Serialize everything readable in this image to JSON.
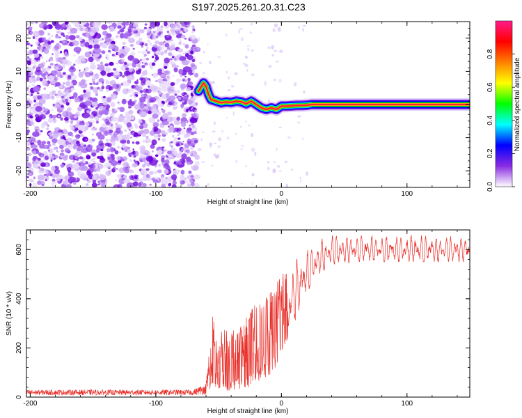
{
  "title": "S197.2025.261.20.31.C23",
  "chart_data": [
    {
      "type": "heatmap",
      "name": "spectrogram",
      "xlabel": "Height of straight line (km)",
      "ylabel": "Frequency (Hz)",
      "xlim": [
        -203,
        150
      ],
      "ylim": [
        -25,
        25
      ],
      "xticks": [
        -200,
        -100,
        0,
        100
      ],
      "yticks": [
        -20,
        -10,
        0,
        10,
        20
      ],
      "noise_region_x": [
        -203,
        -67
      ],
      "signal_trace": {
        "x": [
          -66,
          -62,
          -60,
          -58,
          -56,
          -52,
          -48,
          -44,
          -40,
          -36,
          -32,
          -28,
          -24,
          -20,
          -16,
          -12,
          -8,
          -4,
          0,
          4,
          8,
          12,
          16,
          20,
          24,
          40,
          60,
          80,
          100,
          120,
          150
        ],
        "y": [
          4,
          6.5,
          5.5,
          3,
          1.5,
          1,
          0.5,
          0.8,
          0.6,
          1,
          0.8,
          0.2,
          1,
          0,
          -1,
          -1.5,
          -1,
          -1.5,
          -0.5,
          -0.5,
          -0.4,
          -0.3,
          -0.3,
          -0.2,
          0,
          0,
          0,
          0,
          0,
          0,
          0
        ]
      },
      "colorbar": {
        "label": "Normalized spectral amplitude",
        "range": [
          0.0,
          1.0
        ],
        "ticks": [
          0.0,
          0.2,
          0.4,
          0.6,
          0.8
        ],
        "tick_labels": [
          "0.0",
          "0.2",
          "0.4",
          "0.6",
          "0.8"
        ],
        "colors": [
          "#ffffff",
          "#8a2be2",
          "#0000ff",
          "#00ffff",
          "#00ff00",
          "#ffff00",
          "#ff8000",
          "#ff0000",
          "#ff1a8c"
        ]
      }
    },
    {
      "type": "line",
      "name": "snr",
      "xlabel": "Height of straight line (km)",
      "ylabel": "SNR (10 * v/v)",
      "xlim": [
        -203,
        150
      ],
      "ylim": [
        0,
        680
      ],
      "xticks": [
        -200,
        -100,
        0,
        100
      ],
      "yticks": [
        0,
        200,
        400,
        600
      ],
      "color": "#e8312b",
      "envelope": {
        "x": [
          -203,
          -70,
          -60,
          -55,
          -50,
          -45,
          -40,
          -35,
          -30,
          -25,
          -20,
          -15,
          -10,
          -5,
          0,
          10,
          20,
          30,
          40,
          60,
          80,
          100,
          120,
          150
        ],
        "low": [
          8,
          8,
          10,
          30,
          20,
          20,
          30,
          30,
          40,
          40,
          60,
          70,
          80,
          120,
          160,
          300,
          420,
          500,
          540,
          550,
          550,
          550,
          550,
          550
        ],
        "high": [
          30,
          30,
          60,
          340,
          240,
          300,
          280,
          330,
          300,
          360,
          380,
          420,
          440,
          470,
          500,
          550,
          600,
          640,
          660,
          660,
          660,
          660,
          660,
          660
        ]
      }
    }
  ]
}
